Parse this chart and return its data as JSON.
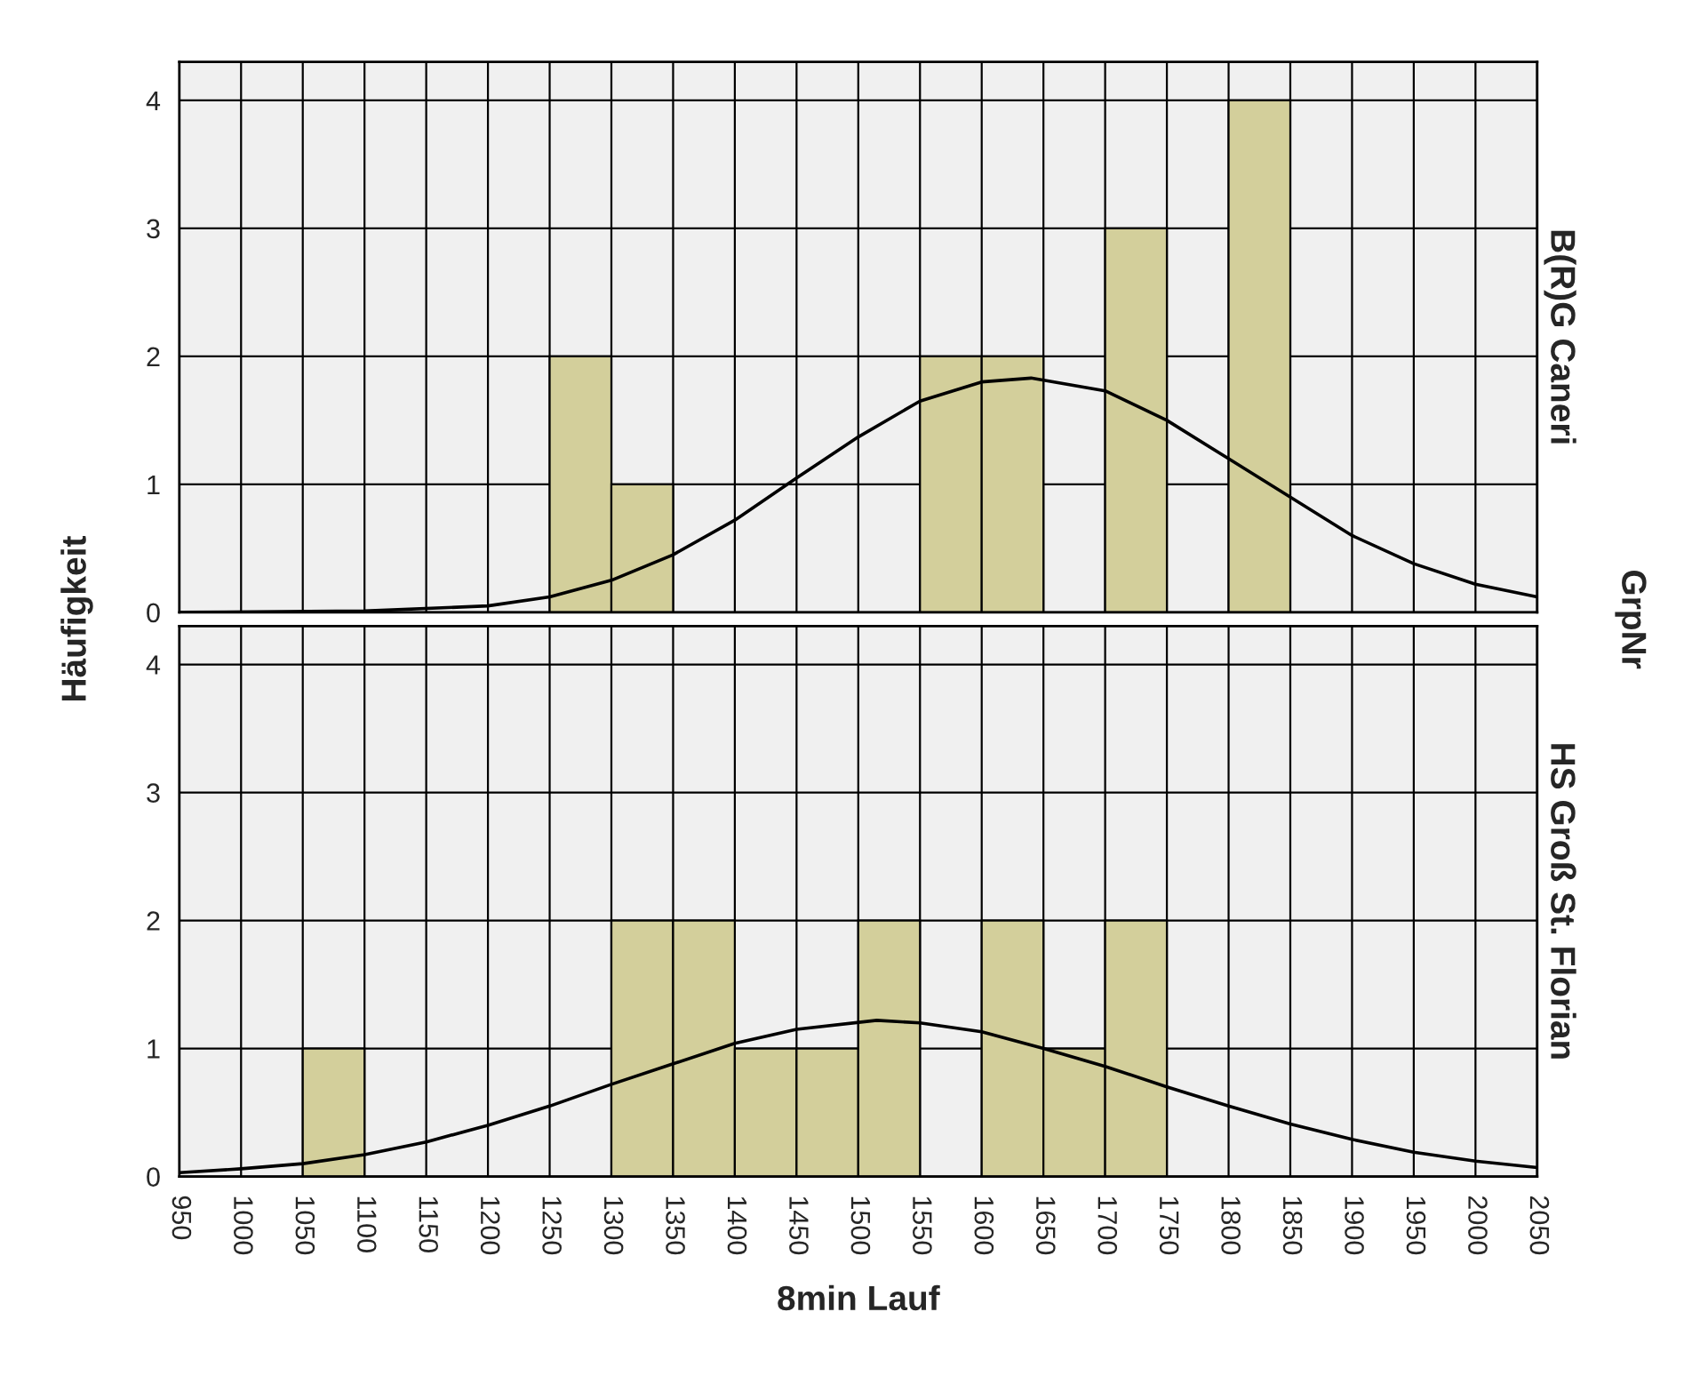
{
  "chart_data": [
    {
      "type": "histogram",
      "title": "B(R)G Caneri",
      "ylabel": "Häufigkeit",
      "annotations": [
        "GrpNr"
      ],
      "color": "#d3cf9b",
      "bins": [
        950,
        1000,
        1050,
        1100,
        1150,
        1200,
        1250,
        1300,
        1350,
        1400,
        1450,
        1500,
        1550,
        1600,
        1650,
        1700,
        1750,
        1800,
        1850,
        1900,
        1950,
        2000,
        2050
      ],
      "values": [
        0,
        0,
        0,
        0,
        0,
        0,
        2,
        1,
        0,
        0,
        0,
        0,
        2,
        2,
        0,
        3,
        0,
        4,
        0,
        0,
        0,
        0
      ],
      "series": [
        {
          "type": "line",
          "color": "#000000",
          "x": [
            950,
            1100,
            1200,
            1250,
            1300,
            1350,
            1400,
            1450,
            1500,
            1550,
            1600,
            1640,
            1700,
            1750,
            1800,
            1850,
            1900,
            1950,
            2000,
            2050
          ],
          "values": [
            0,
            0.01,
            0.05,
            0.12,
            0.25,
            0.45,
            0.72,
            1.05,
            1.37,
            1.65,
            1.8,
            1.83,
            1.73,
            1.5,
            1.2,
            0.9,
            0.6,
            0.38,
            0.22,
            0.12
          ]
        }
      ],
      "xlim": [
        950,
        2050
      ],
      "xticks": [
        950,
        1000,
        1050,
        1100,
        1150,
        1200,
        1250,
        1300,
        1350,
        1400,
        1450,
        1500,
        1550,
        1600,
        1650,
        1700,
        1750,
        1800,
        1850,
        1900,
        1950,
        2000,
        2050
      ],
      "ylim": [
        0,
        4.3
      ],
      "yticks": [
        0,
        1,
        2,
        3,
        4
      ],
      "grid": true,
      "tick_labels": "y"
    },
    {
      "type": "histogram",
      "title": "HS Groß St. Florian",
      "xlabel": "8min Lauf",
      "color": "#d3cf9b",
      "bins": [
        950,
        1000,
        1050,
        1100,
        1150,
        1200,
        1250,
        1300,
        1350,
        1400,
        1450,
        1500,
        1550,
        1600,
        1650,
        1700,
        1750,
        1800,
        1850,
        1900,
        1950,
        2000,
        2050
      ],
      "values": [
        0,
        0,
        1,
        0,
        0,
        0,
        0,
        2,
        2,
        1,
        1,
        2,
        0,
        2,
        1,
        2,
        0,
        0,
        0,
        0,
        0,
        0
      ],
      "series": [
        {
          "type": "line",
          "color": "#000000",
          "x": [
            950,
            1000,
            1050,
            1100,
            1150,
            1200,
            1250,
            1300,
            1350,
            1400,
            1450,
            1515,
            1550,
            1600,
            1650,
            1700,
            1750,
            1800,
            1850,
            1900,
            1950,
            2000,
            2050
          ],
          "values": [
            0.03,
            0.06,
            0.1,
            0.17,
            0.27,
            0.4,
            0.55,
            0.72,
            0.88,
            1.04,
            1.15,
            1.22,
            1.2,
            1.13,
            1.0,
            0.86,
            0.7,
            0.55,
            0.41,
            0.29,
            0.19,
            0.12,
            0.07
          ]
        }
      ],
      "xlim": [
        950,
        2050
      ],
      "xticks": [
        950,
        1000,
        1050,
        1100,
        1150,
        1200,
        1250,
        1300,
        1350,
        1400,
        1450,
        1500,
        1550,
        1600,
        1650,
        1700,
        1750,
        1800,
        1850,
        1900,
        1950,
        2000,
        2050
      ],
      "ylim": [
        0,
        4.3
      ],
      "yticks": [
        0,
        1,
        2,
        3,
        4
      ],
      "grid": true
    }
  ]
}
